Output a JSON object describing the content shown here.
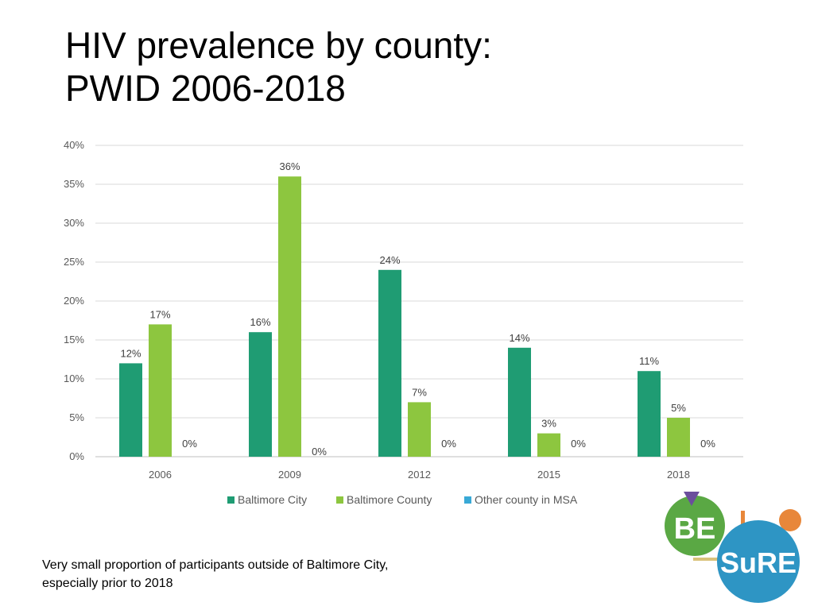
{
  "slide": {
    "title_line1": "HIV prevalence by county:",
    "title_line2": "PWID 2006-2018",
    "footnote_line1": "Very small proportion of participants outside of Baltimore City,",
    "footnote_line2": "especially prior to 2018"
  },
  "logo": {
    "text_be": "BE",
    "text_sure": "SuRE",
    "colors": {
      "green": "#5aa844",
      "blue": "#2e95c4",
      "orange": "#e8873a",
      "purple": "#6b4e9c"
    }
  },
  "chart_data": {
    "type": "bar",
    "title": "",
    "xlabel": "",
    "ylabel": "",
    "categories": [
      "2006",
      "2009",
      "2012",
      "2015",
      "2018"
    ],
    "series": [
      {
        "name": "Baltimore City",
        "color": "#1f9c73",
        "values": [
          12,
          16,
          24,
          14,
          11
        ],
        "labels": [
          "12%",
          "16%",
          "24%",
          "14%",
          "11%"
        ]
      },
      {
        "name": "Baltimore County",
        "color": "#8dc63f",
        "values": [
          17,
          36,
          7,
          3,
          5
        ],
        "labels": [
          "17%",
          "36%",
          "7%",
          "3%",
          "5%"
        ]
      },
      {
        "name": "Other county in MSA",
        "color": "#39a9d6",
        "values": [
          0,
          0,
          0,
          0,
          0
        ],
        "labels": [
          "0%",
          "0%",
          "0%",
          "0%",
          "0%"
        ]
      }
    ],
    "ylim": [
      0,
      40
    ],
    "yticks": [
      0,
      5,
      10,
      15,
      20,
      25,
      30,
      35,
      40
    ],
    "ytick_labels": [
      "0%",
      "5%",
      "10%",
      "15%",
      "20%",
      "25%",
      "30%",
      "35%",
      "40%"
    ],
    "grid": true,
    "legend": "bottom-center"
  }
}
